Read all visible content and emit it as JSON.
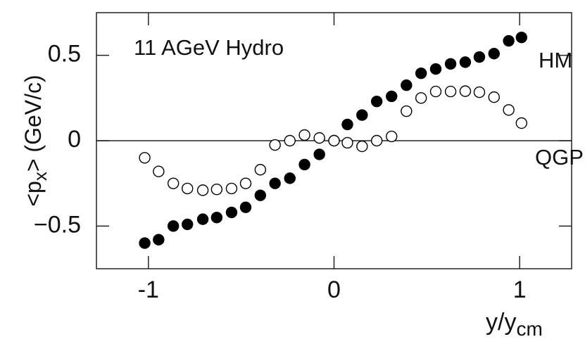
{
  "chart_data": {
    "type": "scatter",
    "annotation": "11 AGeV Hydro",
    "xlabel": {
      "main": "y/y",
      "sub": "cm"
    },
    "ylabel": {
      "before": "<p",
      "sub": "x",
      "after": "> (GeV/c)"
    },
    "xlim": [
      -1.28,
      1.28
    ],
    "ylim": [
      -0.75,
      0.75
    ],
    "xticks": [
      -1,
      {
        "value": 0,
        "label": "0"
      },
      1
    ],
    "yticks": [
      {
        "value": -0.5,
        "label": "−0.5"
      },
      0,
      0.5
    ],
    "zero_line": true,
    "series": [
      {
        "name": "HM",
        "color": "#000000",
        "marker": "filled",
        "x": [
          -1.02,
          -0.945,
          -0.866,
          -0.79,
          -0.707,
          -0.632,
          -0.552,
          -0.476,
          -0.397,
          -0.318,
          -0.238,
          -0.159,
          -0.079,
          0,
          0.072,
          0.151,
          0.23,
          0.31,
          0.39,
          0.469,
          0.548,
          0.628,
          0.707,
          0.783,
          0.862,
          0.941,
          1.01
        ],
        "values": [
          -0.6,
          -0.58,
          -0.5,
          -0.49,
          -0.46,
          -0.45,
          -0.42,
          -0.39,
          -0.32,
          -0.25,
          -0.22,
          -0.14,
          -0.08,
          0,
          0.095,
          0.15,
          0.23,
          0.26,
          0.325,
          0.395,
          0.42,
          0.45,
          0.46,
          0.49,
          0.51,
          0.585,
          0.605
        ]
      },
      {
        "name": "QGP",
        "color": "#000000",
        "marker": "open",
        "x": [
          -1.02,
          -0.945,
          -0.866,
          -0.79,
          -0.707,
          -0.632,
          -0.552,
          -0.476,
          -0.397,
          -0.318,
          -0.238,
          -0.159,
          -0.079,
          0,
          0.072,
          0.151,
          0.23,
          0.31,
          0.39,
          0.469,
          0.548,
          0.628,
          0.707,
          0.783,
          0.862,
          0.941,
          1.01
        ],
        "values": [
          -0.1,
          -0.18,
          -0.25,
          -0.28,
          -0.29,
          -0.285,
          -0.28,
          -0.25,
          -0.17,
          -0.025,
          0,
          0.033,
          0.016,
          0,
          -0.012,
          -0.033,
          0,
          0.025,
          0.173,
          0.25,
          0.288,
          0.288,
          0.29,
          0.284,
          0.255,
          0.18,
          0.103
        ]
      }
    ]
  }
}
